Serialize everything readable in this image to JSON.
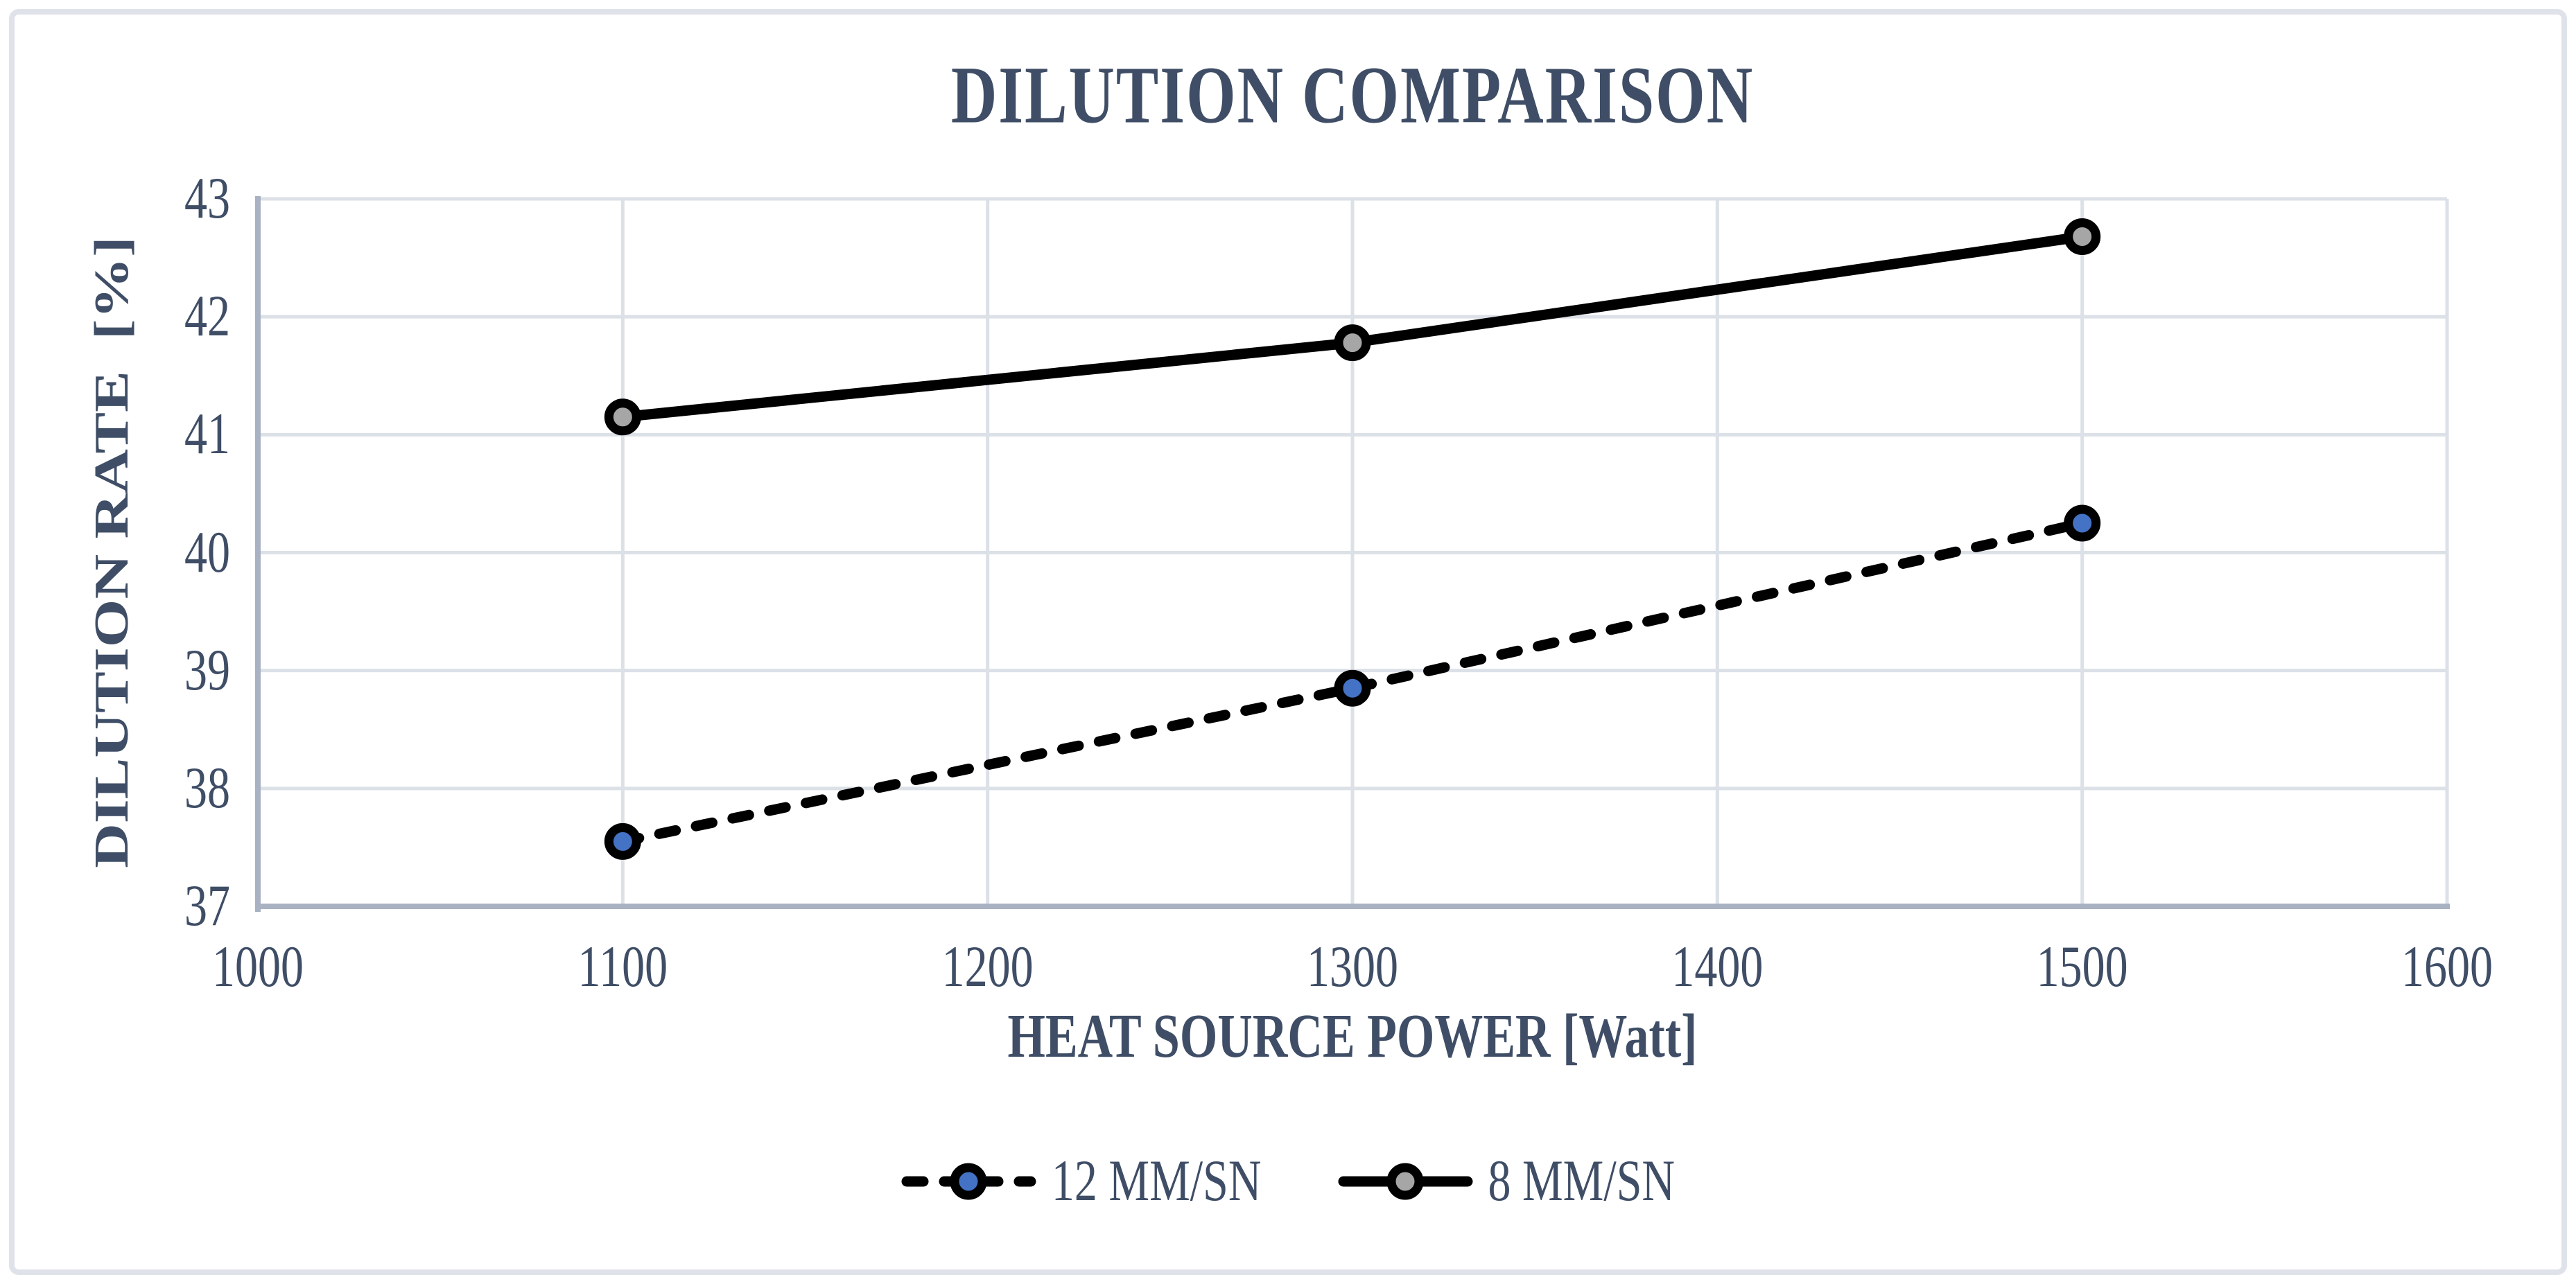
{
  "chart": {
    "title": "DILUTION COMPARISON"
  },
  "chart_data": {
    "type": "line",
    "title": "DILUTION COMPARISON",
    "xlabel": "HEAT SOURCE POWER [Watt]",
    "ylabel": "DILUTION RATE  [%]",
    "x": [
      1100,
      1300,
      1500
    ],
    "series": [
      {
        "name": "12 MM/SN",
        "values": [
          37.55,
          38.85,
          40.25
        ],
        "line_style": "dashed",
        "line_color": "#000000",
        "marker_fill": "#4472C4",
        "marker_stroke": "#000000"
      },
      {
        "name": "8 MM/SN",
        "values": [
          41.15,
          41.78,
          42.68
        ],
        "line_style": "solid",
        "line_color": "#000000",
        "marker_fill": "#A6A6A6",
        "marker_stroke": "#000000"
      }
    ],
    "xlim": [
      1000,
      1600
    ],
    "ylim": [
      37,
      43
    ],
    "x_ticks": [
      "1000",
      "1100",
      "1200",
      "1300",
      "1400",
      "1500",
      "1600"
    ],
    "y_ticks": [
      "37",
      "38",
      "39",
      "40",
      "41",
      "42",
      "43"
    ],
    "grid": true,
    "legend_position": "bottom"
  },
  "style": {
    "text_color": "#3F4E66",
    "gridline_color": "#DCE0E7",
    "axis_line_color": "#A9B2C3",
    "frame_color": "#DFE3E9"
  }
}
